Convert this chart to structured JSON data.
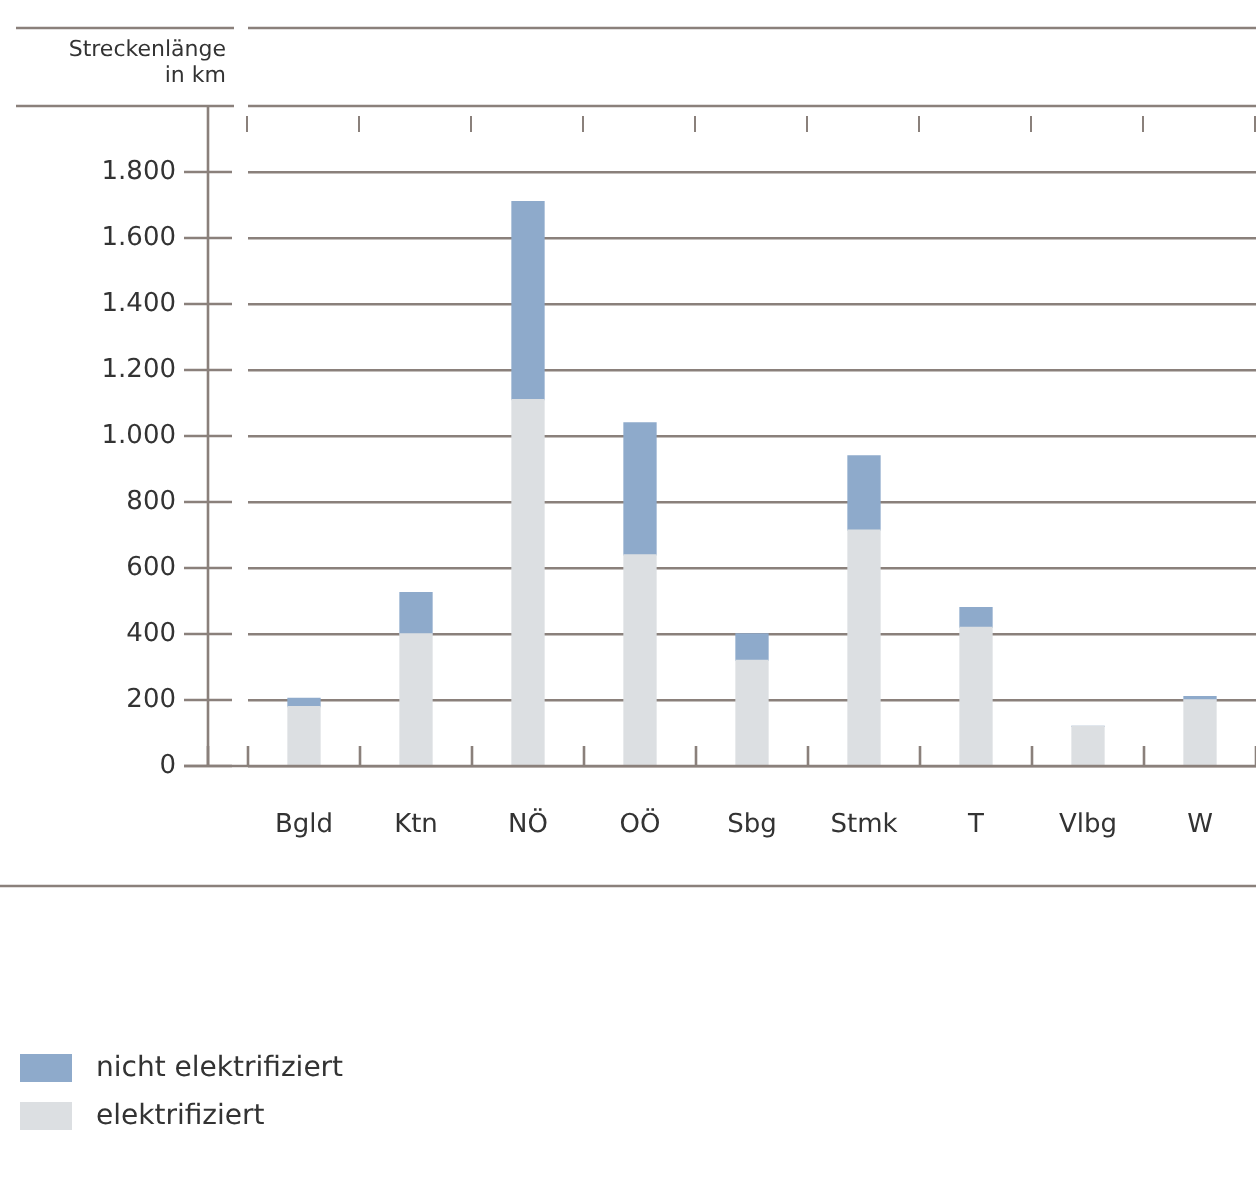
{
  "chart_data": {
    "type": "bar",
    "stacked": true,
    "ylabel": "Streckenlänge\nin km",
    "categories": [
      "Bgld",
      "Ktn",
      "NÖ",
      "OÖ",
      "Sbg",
      "Stmk",
      "T",
      "Vlbg",
      "W"
    ],
    "series": [
      {
        "name": "elektrifiziert",
        "color": "#dcdfe2",
        "values": [
          180,
          400,
          1110,
          640,
          320,
          715,
          420,
          120,
          200
        ]
      },
      {
        "name": "nicht elektrifiziert",
        "color": "#8eaacb",
        "values": [
          25,
          125,
          600,
          400,
          80,
          225,
          60,
          0,
          10
        ]
      }
    ],
    "ylim": [
      0,
      2000
    ],
    "yticks": [
      0,
      200,
      400,
      600,
      800,
      {
        "value": 1000,
        "label": "1.000"
      },
      {
        "value": 1200,
        "label": "1.200"
      },
      {
        "value": 1400,
        "label": "1.400"
      },
      {
        "value": 1600,
        "label": "1.600"
      },
      {
        "value": 1800,
        "label": "1.800"
      }
    ],
    "grid": "y",
    "legend": "bottom left"
  }
}
